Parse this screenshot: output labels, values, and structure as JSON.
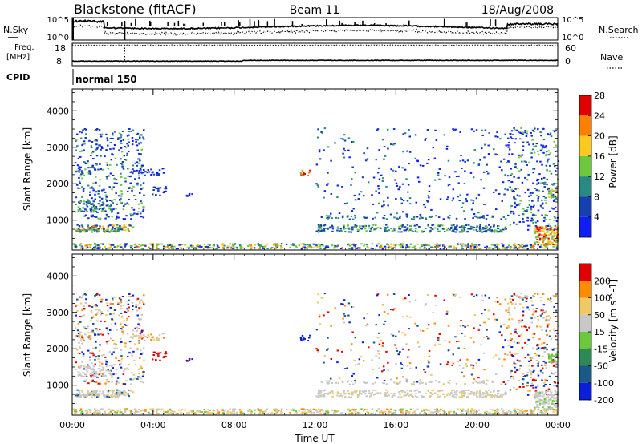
{
  "header": {
    "station": "Blackstone (fitACF)",
    "beam": "Beam 11",
    "date": "18/Aug/2008"
  },
  "summary_panels": {
    "nsky_label": "N.Sky",
    "nsearch_label": "N.Search",
    "nsky_ticks": [
      "10^5",
      "10^0"
    ],
    "nsearch_ticks": [
      "10^5",
      "10^0"
    ],
    "freq_label_line1": "Freq.",
    "freq_label_line2": "[MHz]",
    "freq_ticks": [
      "18",
      "8"
    ],
    "nave_label": "Nave",
    "nave_ticks": [
      "60",
      "0"
    ],
    "cpid_label": "CPID",
    "cpid_value": "normal 150"
  },
  "chart_data": [
    {
      "type": "heatmap",
      "name": "power",
      "ylabel": "Slant Range [km]",
      "xlabel": "",
      "y_ticks": [
        "1000",
        "2000",
        "3000",
        "4000"
      ],
      "ylim": [
        180,
        4600
      ],
      "colorbar_label": "Power [dB]",
      "colorbar_ticks": [
        "4",
        "8",
        "12",
        "16",
        "20",
        "24",
        "28"
      ],
      "colorbar_colors": [
        "#0f1ef5",
        "#1440b4",
        "#2a8a82",
        "#6cc83c",
        "#ffc81e",
        "#ff7f00",
        "#e10000"
      ]
    },
    {
      "type": "heatmap",
      "name": "velocity",
      "ylabel": "Slant Range [km]",
      "xlabel": "Time UT",
      "x_ticks": [
        "00:00",
        "04:00",
        "08:00",
        "12:00",
        "16:00",
        "20:00",
        "00:00"
      ],
      "xlim_hours": [
        0,
        24
      ],
      "y_ticks": [
        "1000",
        "2000",
        "3000",
        "4000"
      ],
      "ylim": [
        180,
        4600
      ],
      "colorbar_label": "Velocity [m s^-1]",
      "colorbar_ticks": [
        "200",
        "100",
        "50",
        "15",
        "-15",
        "-50",
        "-100",
        "-200"
      ],
      "colorbar_colors": [
        "#0a1edc",
        "#1a5a8a",
        "#2c8a54",
        "#6cc83c",
        "#c8c8c8",
        "#f0c864",
        "#ff8c00",
        "#e10000"
      ]
    }
  ],
  "legend_colors": {
    "ground_scatter": "#c8c8c8"
  }
}
